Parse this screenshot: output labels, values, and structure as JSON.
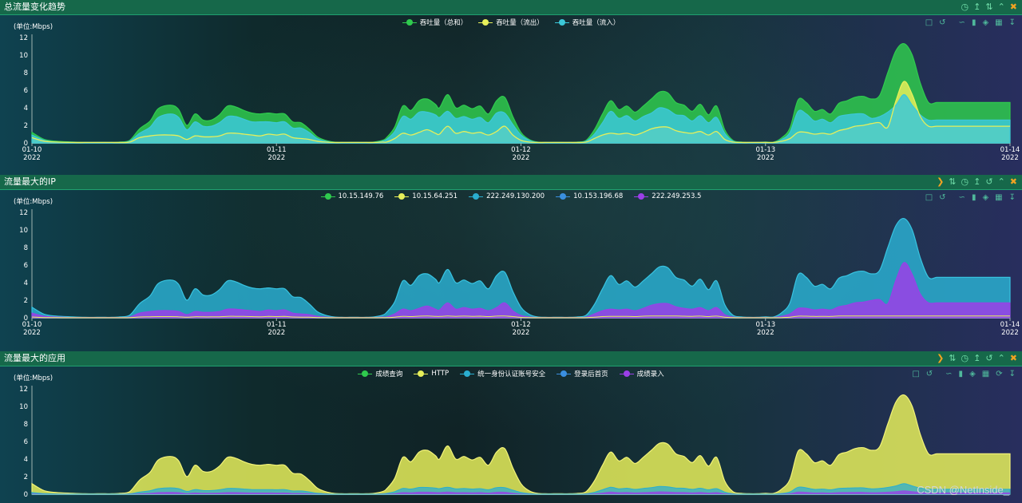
{
  "panels": [
    {
      "title": "总流量变化趋势",
      "icons": [
        "clock-icon",
        "upload-icon",
        "refresh-icon",
        "collapse-icon",
        "close-icon"
      ]
    },
    {
      "title": "流量最大的IP",
      "icons": [
        "next-icon",
        "sort-icon",
        "clock-icon",
        "upload-icon",
        "refresh-icon",
        "collapse-icon",
        "close-icon"
      ]
    },
    {
      "title": "流量最大的应用",
      "icons": [
        "next-icon",
        "sort-icon",
        "clock-icon",
        "upload-icon",
        "refresh-icon",
        "collapse-icon",
        "close-icon"
      ]
    }
  ],
  "toolbox_icons": [
    "zoom-icon",
    "zoom-reset-icon",
    "line-chart-icon",
    "bar-chart-icon",
    "stack-icon",
    "tiled-icon",
    "download-icon"
  ],
  "watermark": "CSDN @NetInside_",
  "chart_data": [
    {
      "type": "area",
      "ylabel": "(单位:Mbps)",
      "ylim": [
        0,
        12
      ],
      "yticks": [
        0,
        2,
        4,
        6,
        8,
        10,
        12
      ],
      "xticks": [
        {
          "top": "01-10",
          "bottom": "2022"
        },
        {
          "top": "01-11",
          "bottom": "2022"
        },
        {
          "top": "01-12",
          "bottom": "2022"
        },
        {
          "top": "01-13",
          "bottom": "2022"
        },
        {
          "top": "01-14",
          "bottom": "2022"
        }
      ],
      "grid": false,
      "legend_position": "top-center",
      "series": [
        {
          "name": "吞吐量（总和）",
          "color": "#2fca4e",
          "fill": true
        },
        {
          "name": "吞吐量（流出）",
          "color": "#e6ef5a",
          "fill": true
        },
        {
          "name": "吞吐量（流入）",
          "color": "#3cc8d8",
          "fill": true
        }
      ]
    },
    {
      "type": "area",
      "ylabel": "(单位:Mbps)",
      "ylim": [
        0,
        12
      ],
      "yticks": [
        0,
        2,
        4,
        6,
        8,
        10,
        12
      ],
      "xticks": [
        {
          "top": "01-10",
          "bottom": "2022"
        },
        {
          "top": "01-11",
          "bottom": "2022"
        },
        {
          "top": "01-12",
          "bottom": "2022"
        },
        {
          "top": "01-13",
          "bottom": "2022"
        },
        {
          "top": "01-14",
          "bottom": "2022"
        }
      ],
      "grid": false,
      "legend_position": "top-center",
      "series": [
        {
          "name": "10.15.149.76",
          "color": "#2fca4e"
        },
        {
          "name": "10.15.64.251",
          "color": "#e6ef5a"
        },
        {
          "name": "222.249.130.200",
          "color": "#2aaed0"
        },
        {
          "name": "10.153.196.68",
          "color": "#3a8fe0"
        },
        {
          "name": "222.249.253.5",
          "color": "#9b3fe8"
        }
      ]
    },
    {
      "type": "area",
      "ylabel": "(单位:Mbps)",
      "ylim": [
        0,
        12
      ],
      "yticks": [
        0,
        2,
        4,
        6,
        8,
        10,
        12
      ],
      "grid": false,
      "legend_position": "top-center",
      "series": [
        {
          "name": "成绩查询",
          "color": "#2fca4e"
        },
        {
          "name": "HTTP",
          "color": "#e6ef5a"
        },
        {
          "name": "统一身份认证账号安全",
          "color": "#2aaed0"
        },
        {
          "name": "登录后首页",
          "color": "#3a8fe0"
        },
        {
          "name": "成绩录入",
          "color": "#9b3fe8"
        }
      ]
    }
  ],
  "profile": {
    "x": [
      0,
      0.15,
      0.3,
      0.5,
      0.65,
      0.8,
      0.9,
      0.98,
      1.08,
      1.2,
      1.32,
      1.45,
      1.55,
      1.7,
      1.8,
      1.9,
      2.0,
      2.1,
      2.2,
      2.3,
      2.4,
      2.5,
      2.6,
      2.7,
      2.8,
      2.9,
      3.0,
      3.1,
      3.2,
      3.3,
      3.4,
      3.5,
      3.6,
      3.7,
      3.8,
      3.9,
      4.0,
      4.1,
      4.2,
      4.3,
      4.35,
      4.45,
      4.55,
      4.65,
      4.75,
      4.85,
      4.95,
      5.0,
      5.1,
      5.2,
      5.3,
      5.4,
      5.5,
      5.6,
      5.7,
      5.8,
      5.9,
      6.0,
      6.1,
      6.2,
      6.3,
      6.4,
      6.5,
      6.6,
      6.7,
      6.8,
      6.9,
      7.0,
      7.1,
      7.2,
      7.3,
      7.4,
      7.5,
      7.6,
      7.7,
      7.8,
      7.9,
      8.0,
      8.1,
      8.2,
      8.3,
      8.4,
      8.5,
      8.6,
      8.7,
      8.8,
      8.9,
      9.0,
      9.1,
      9.2,
      9.3,
      9.4,
      9.5,
      9.6,
      9.7,
      9.8,
      9.9,
      10.0,
      10.1,
      10.2,
      10.3,
      10.4,
      10.5,
      10.6,
      10.7,
      10.8,
      10.9,
      11.0,
      11.1,
      11.2,
      11.3,
      11.4,
      11.5,
      11.6,
      11.7,
      11.8,
      11.9,
      12.0
    ],
    "total": [
      1.2,
      0.4,
      0.2,
      0.1,
      0.05,
      0.05,
      0.05,
      0.05,
      0.1,
      0.3,
      1.6,
      2.5,
      3.9,
      4.3,
      3.8,
      2.0,
      3.3,
      2.6,
      2.6,
      3.2,
      4.2,
      4.1,
      3.7,
      3.4,
      3.3,
      3.4,
      3.3,
      3.3,
      2.4,
      2.3,
      1.6,
      0.7,
      0.3,
      0.1,
      0.05,
      0.05,
      0.05,
      0.05,
      0.1,
      0.3,
      0.6,
      1.8,
      4.2,
      3.7,
      4.8,
      5.0,
      4.4,
      4.0,
      5.5,
      4.0,
      4.3,
      3.9,
      4.2,
      3.3,
      4.8,
      5.2,
      3.0,
      1.2,
      0.4,
      0.1,
      0.05,
      0.05,
      0.05,
      0.05,
      0.1,
      0.3,
      1.5,
      3.3,
      4.8,
      3.8,
      4.2,
      3.5,
      4.2,
      5.0,
      5.8,
      5.7,
      4.6,
      4.3,
      3.6,
      4.4,
      3.2,
      4.2,
      1.5,
      0.3,
      0.1,
      0.05,
      0.05,
      0.1,
      0.1,
      0.6,
      1.7,
      4.9,
      4.6,
      3.6,
      3.8,
      3.3,
      4.5,
      4.8,
      5.2,
      5.3,
      5.0,
      5.4,
      8.0,
      10.5,
      11.3,
      10.0,
      6.8,
      4.6,
      4.6,
      4.6,
      4.6,
      4.6,
      4.6,
      4.6,
      4.6,
      4.6,
      4.6,
      4.6
    ],
    "out": [
      0.6,
      0.2,
      0.1,
      0.05,
      0.05,
      0.05,
      0.05,
      0.05,
      0.05,
      0.1,
      0.6,
      0.8,
      0.9,
      0.9,
      0.8,
      0.4,
      0.8,
      0.7,
      0.7,
      0.8,
      1.1,
      1.1,
      1.0,
      0.9,
      0.8,
      1.0,
      0.9,
      1.0,
      0.6,
      0.5,
      0.4,
      0.2,
      0.1,
      0.05,
      0.05,
      0.05,
      0.05,
      0.05,
      0.05,
      0.1,
      0.1,
      0.5,
      1.1,
      0.9,
      1.2,
      1.5,
      1.1,
      1.0,
      1.9,
      1.1,
      1.3,
      1.1,
      1.2,
      0.9,
      1.3,
      1.9,
      0.9,
      0.3,
      0.1,
      0.05,
      0.05,
      0.05,
      0.05,
      0.05,
      0.05,
      0.1,
      0.5,
      0.9,
      1.1,
      1.0,
      1.1,
      0.9,
      1.2,
      1.6,
      1.8,
      1.8,
      1.4,
      1.2,
      1.1,
      1.3,
      0.9,
      1.3,
      0.4,
      0.1,
      0.05,
      0.05,
      0.05,
      0.05,
      0.05,
      0.2,
      0.5,
      1.2,
      1.2,
      1.0,
      1.1,
      1.0,
      1.4,
      1.6,
      1.9,
      2.0,
      2.2,
      2.3,
      1.8,
      4.8,
      7.0,
      5.5,
      3.0,
      1.9,
      1.9,
      1.9,
      1.9,
      1.9,
      1.9,
      1.9,
      1.9,
      1.9,
      1.9,
      1.9
    ],
    "in": [
      0.9,
      0.3,
      0.1,
      0.05,
      0.05,
      0.05,
      0.05,
      0.05,
      0.05,
      0.2,
      1.1,
      1.8,
      2.9,
      3.3,
      2.9,
      1.5,
      2.4,
      1.9,
      1.9,
      2.3,
      3.0,
      3.0,
      2.7,
      2.4,
      2.4,
      2.4,
      2.3,
      2.4,
      1.7,
      1.7,
      1.2,
      0.5,
      0.2,
      0.05,
      0.05,
      0.05,
      0.05,
      0.05,
      0.05,
      0.2,
      0.4,
      1.3,
      3.0,
      2.7,
      3.5,
      3.5,
      3.2,
      2.9,
      3.6,
      2.8,
      3.0,
      2.7,
      2.9,
      2.3,
      3.4,
      3.4,
      2.1,
      0.9,
      0.3,
      0.05,
      0.05,
      0.05,
      0.05,
      0.05,
      0.05,
      0.2,
      1.0,
      2.3,
      3.6,
      2.8,
      3.1,
      2.5,
      3.0,
      3.4,
      4.0,
      3.8,
      3.2,
      3.1,
      2.5,
      3.1,
      2.3,
      2.9,
      1.1,
      0.2,
      0.05,
      0.05,
      0.05,
      0.05,
      0.05,
      0.4,
      1.2,
      3.6,
      3.3,
      2.5,
      2.7,
      2.3,
      3.0,
      3.2,
      3.3,
      3.3,
      2.8,
      3.0,
      3.5,
      4.3,
      5.5,
      4.3,
      3.2,
      2.6,
      2.6,
      2.6,
      2.6,
      2.6,
      2.6,
      2.6,
      2.6,
      2.6,
      2.6,
      2.6
    ]
  }
}
